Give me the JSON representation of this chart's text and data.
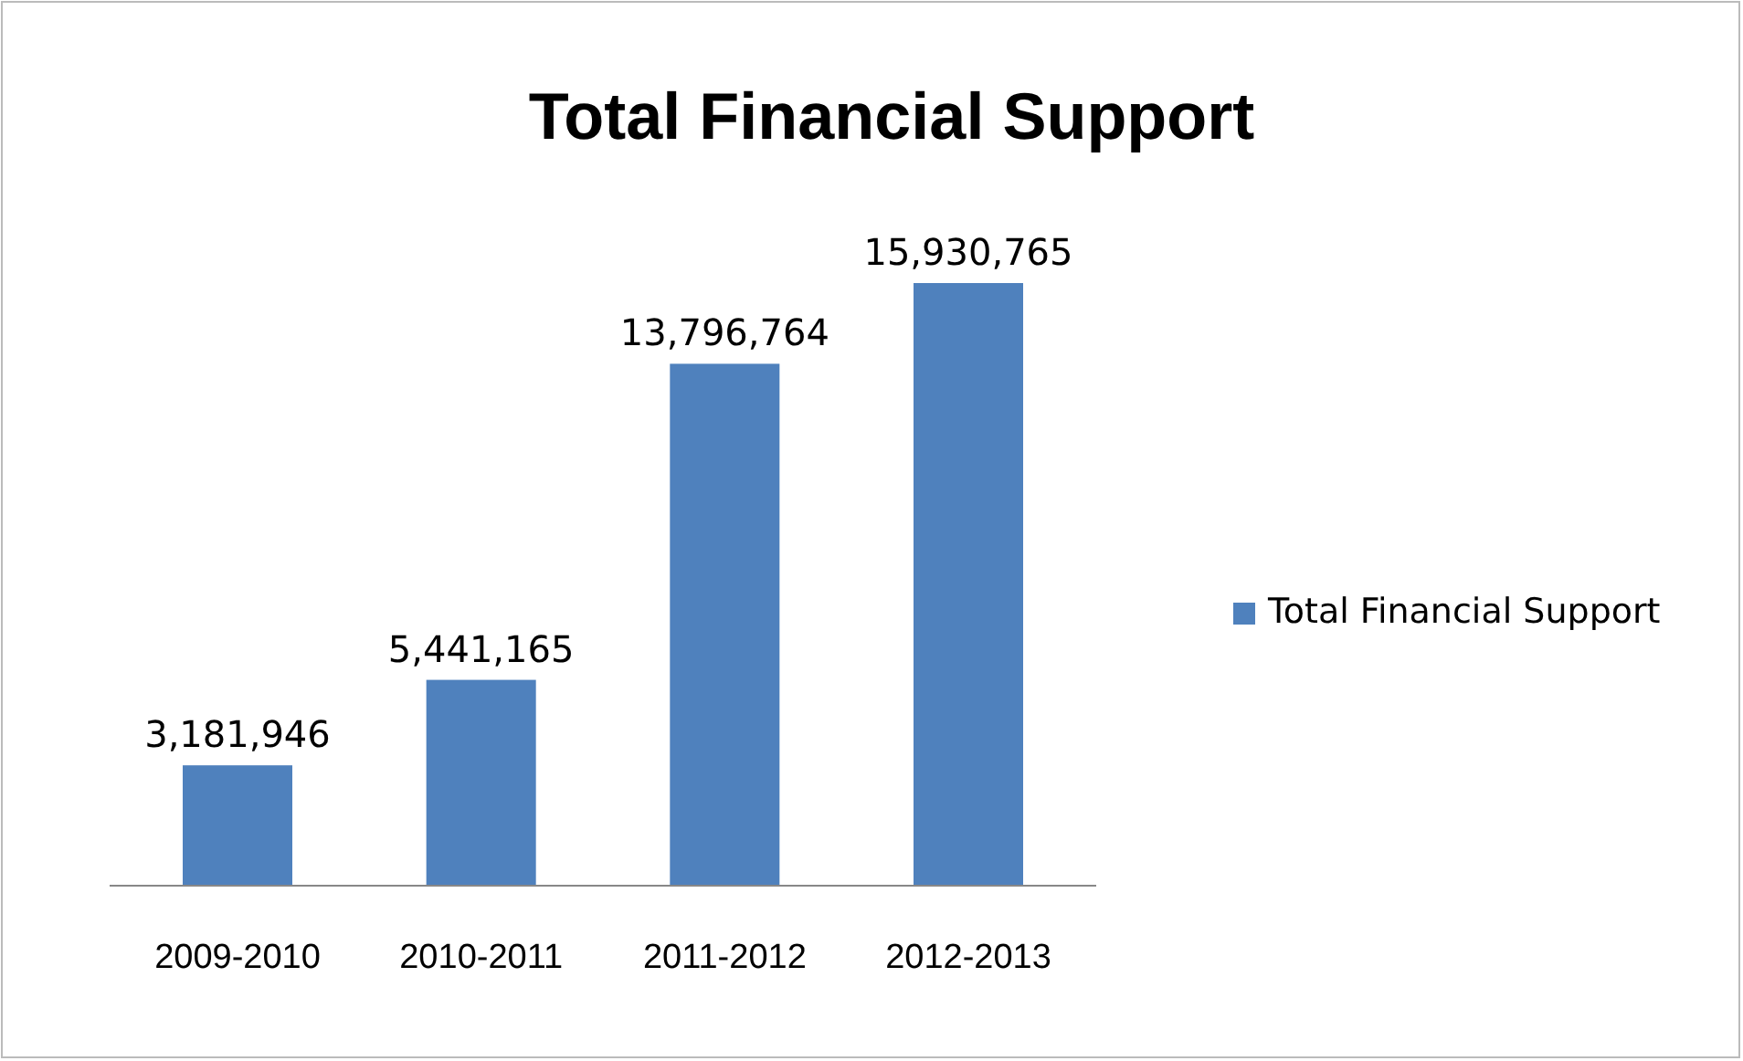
{
  "chart_data": {
    "type": "bar",
    "title": "Total Financial Support",
    "categories": [
      "2009-2010",
      "2010-2011",
      "2011-2012",
      "2012-2013"
    ],
    "series": [
      {
        "name": "Total Financial Support",
        "color": "#4f81bd",
        "values": [
          3181946,
          5441165,
          13796764,
          15930765
        ],
        "value_labels": [
          "3,181,946",
          "5,441,165",
          "13,796,764",
          "15,930,765"
        ]
      }
    ],
    "legend": "right",
    "grid": false
  }
}
